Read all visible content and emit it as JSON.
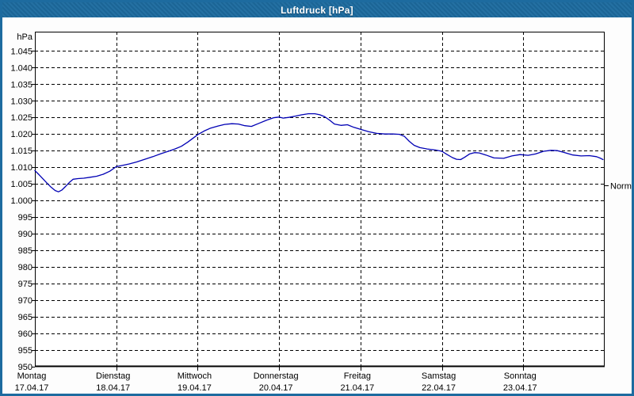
{
  "window": {
    "title": "Luftdruck [hPa]"
  },
  "colors": {
    "titlebar_bg": "#1d6b9f",
    "window_border": "#1d6b9f",
    "plot_bg": "#ffffff",
    "grid": "#000000",
    "axis": "#000000",
    "curve": "#0000b4",
    "text": "#000000",
    "title_text": "#ffffff"
  },
  "chart_data": {
    "type": "line",
    "title": "Luftdruck [hPa]",
    "ylabel": "hPa",
    "y_axis": {
      "min": 950,
      "max": 1045,
      "step": 5,
      "unit_label": "hPa",
      "ticks": [
        {
          "value": 1045,
          "label": "1.045"
        },
        {
          "value": 1040,
          "label": "1.040"
        },
        {
          "value": 1035,
          "label": "1.035"
        },
        {
          "value": 1030,
          "label": "1.030"
        },
        {
          "value": 1025,
          "label": "1.025"
        },
        {
          "value": 1020,
          "label": "1.020"
        },
        {
          "value": 1015,
          "label": "1.015"
        },
        {
          "value": 1010,
          "label": "1.010"
        },
        {
          "value": 1005,
          "label": "1.005"
        },
        {
          "value": 1000,
          "label": "1.000"
        },
        {
          "value": 995,
          "label": "995"
        },
        {
          "value": 990,
          "label": "990"
        },
        {
          "value": 985,
          "label": "985"
        },
        {
          "value": 980,
          "label": "980"
        },
        {
          "value": 975,
          "label": "975"
        },
        {
          "value": 970,
          "label": "970"
        },
        {
          "value": 965,
          "label": "965"
        },
        {
          "value": 960,
          "label": "960"
        },
        {
          "value": 955,
          "label": "955"
        },
        {
          "value": 950,
          "label": "950"
        }
      ]
    },
    "x_axis": {
      "days": [
        {
          "name": "Montag",
          "date": "17.04.17"
        },
        {
          "name": "Dienstag",
          "date": "18.04.17"
        },
        {
          "name": "Mittwoch",
          "date": "19.04.17"
        },
        {
          "name": "Donnerstag",
          "date": "20.04.17"
        },
        {
          "name": "Freitag",
          "date": "21.04.17"
        },
        {
          "name": "Samstag",
          "date": "22.04.17"
        },
        {
          "name": "Sonntag",
          "date": "23.04.17"
        }
      ]
    },
    "normal_marker": {
      "label": "Normal",
      "value": 1004.5
    },
    "legend_position": "right",
    "grid": "dashed",
    "series": [
      {
        "name": "Luftdruck",
        "unit": "hPa",
        "points": [
          [
            0.0,
            1009.0
          ],
          [
            0.05,
            1007.8
          ],
          [
            0.1,
            1006.5
          ],
          [
            0.15,
            1005.2
          ],
          [
            0.2,
            1004.0
          ],
          [
            0.25,
            1003.0
          ],
          [
            0.29,
            1002.6
          ],
          [
            0.33,
            1003.1
          ],
          [
            0.38,
            1004.3
          ],
          [
            0.43,
            1005.6
          ],
          [
            0.47,
            1006.4
          ],
          [
            0.53,
            1006.6
          ],
          [
            0.6,
            1006.7
          ],
          [
            0.68,
            1007.0
          ],
          [
            0.76,
            1007.3
          ],
          [
            0.84,
            1007.9
          ],
          [
            0.92,
            1008.8
          ],
          [
            1.0,
            1010.2
          ],
          [
            1.08,
            1010.6
          ],
          [
            1.16,
            1011.0
          ],
          [
            1.25,
            1011.6
          ],
          [
            1.35,
            1012.4
          ],
          [
            1.45,
            1013.2
          ],
          [
            1.55,
            1014.1
          ],
          [
            1.65,
            1014.9
          ],
          [
            1.72,
            1015.5
          ],
          [
            1.8,
            1016.3
          ],
          [
            1.88,
            1017.6
          ],
          [
            1.94,
            1018.7
          ],
          [
            2.0,
            1019.8
          ],
          [
            2.08,
            1020.9
          ],
          [
            2.16,
            1021.8
          ],
          [
            2.25,
            1022.4
          ],
          [
            2.33,
            1022.9
          ],
          [
            2.42,
            1023.1
          ],
          [
            2.5,
            1023.0
          ],
          [
            2.58,
            1022.5
          ],
          [
            2.66,
            1022.3
          ],
          [
            2.75,
            1023.2
          ],
          [
            2.85,
            1024.2
          ],
          [
            2.93,
            1024.9
          ],
          [
            3.0,
            1025.1
          ],
          [
            3.05,
            1024.8
          ],
          [
            3.12,
            1025.0
          ],
          [
            3.2,
            1025.4
          ],
          [
            3.28,
            1025.8
          ],
          [
            3.36,
            1026.1
          ],
          [
            3.44,
            1026.1
          ],
          [
            3.5,
            1025.8
          ],
          [
            3.56,
            1025.2
          ],
          [
            3.62,
            1024.2
          ],
          [
            3.68,
            1023.0
          ],
          [
            3.76,
            1022.6
          ],
          [
            3.84,
            1022.8
          ],
          [
            3.92,
            1022.0
          ],
          [
            4.0,
            1021.4
          ],
          [
            4.1,
            1020.7
          ],
          [
            4.2,
            1020.2
          ],
          [
            4.3,
            1020.0
          ],
          [
            4.4,
            1020.0
          ],
          [
            4.48,
            1019.9
          ],
          [
            4.54,
            1019.3
          ],
          [
            4.6,
            1017.8
          ],
          [
            4.66,
            1016.6
          ],
          [
            4.73,
            1015.9
          ],
          [
            4.82,
            1015.5
          ],
          [
            4.92,
            1015.2
          ],
          [
            5.0,
            1014.8
          ],
          [
            5.06,
            1013.9
          ],
          [
            5.13,
            1012.9
          ],
          [
            5.18,
            1012.4
          ],
          [
            5.23,
            1012.3
          ],
          [
            5.28,
            1013.0
          ],
          [
            5.34,
            1014.0
          ],
          [
            5.4,
            1014.4
          ],
          [
            5.46,
            1014.3
          ],
          [
            5.54,
            1013.7
          ],
          [
            5.64,
            1012.8
          ],
          [
            5.76,
            1012.7
          ],
          [
            5.86,
            1013.4
          ],
          [
            5.96,
            1013.8
          ],
          [
            6.06,
            1013.6
          ],
          [
            6.15,
            1014.0
          ],
          [
            6.25,
            1014.8
          ],
          [
            6.34,
            1015.1
          ],
          [
            6.42,
            1015.0
          ],
          [
            6.51,
            1014.4
          ],
          [
            6.61,
            1013.7
          ],
          [
            6.71,
            1013.4
          ],
          [
            6.81,
            1013.5
          ],
          [
            6.9,
            1013.2
          ],
          [
            6.95,
            1012.7
          ],
          [
            6.98,
            1012.3
          ]
        ]
      }
    ]
  }
}
